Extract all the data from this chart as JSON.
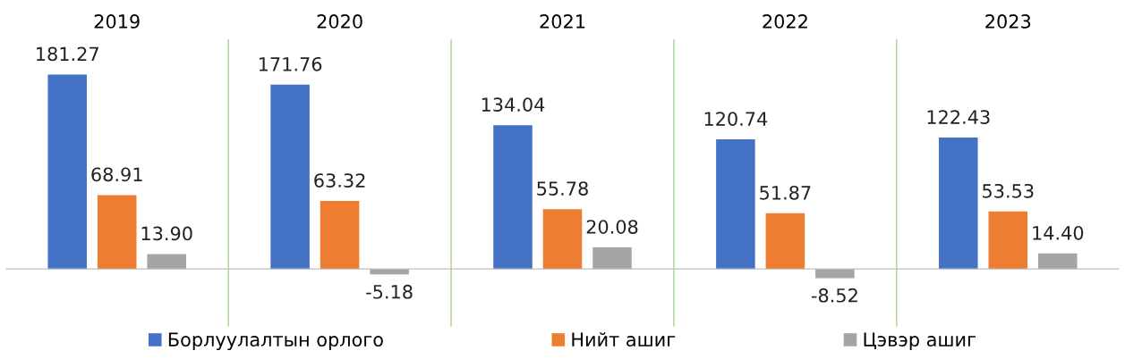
{
  "chart_data": {
    "type": "bar",
    "categories": [
      "2019",
      "2020",
      "2021",
      "2022",
      "2023"
    ],
    "series": [
      {
        "name": "Борлуулалтын орлого",
        "color": "#4472c4",
        "values": [
          181.27,
          171.76,
          134.04,
          120.74,
          122.43
        ],
        "value_labels": [
          "181.27",
          "171.76",
          "134.04",
          "120.74",
          "122.43"
        ]
      },
      {
        "name": "Нийт ашиг",
        "color": "#ed7d31",
        "values": [
          68.91,
          63.32,
          55.78,
          51.87,
          53.53
        ],
        "value_labels": [
          "68.91",
          "63.32",
          "55.78",
          "51.87",
          "53.53"
        ]
      },
      {
        "name": "Цэвэр ашиг",
        "color": "#a5a5a5",
        "values": [
          13.9,
          -5.18,
          20.08,
          -8.52,
          14.4
        ],
        "value_labels": [
          "13.90",
          "-5.18",
          "20.08",
          "-8.52",
          "14.40"
        ]
      }
    ],
    "tick_labels": "x",
    "grid": "x",
    "legend": "bottom"
  }
}
